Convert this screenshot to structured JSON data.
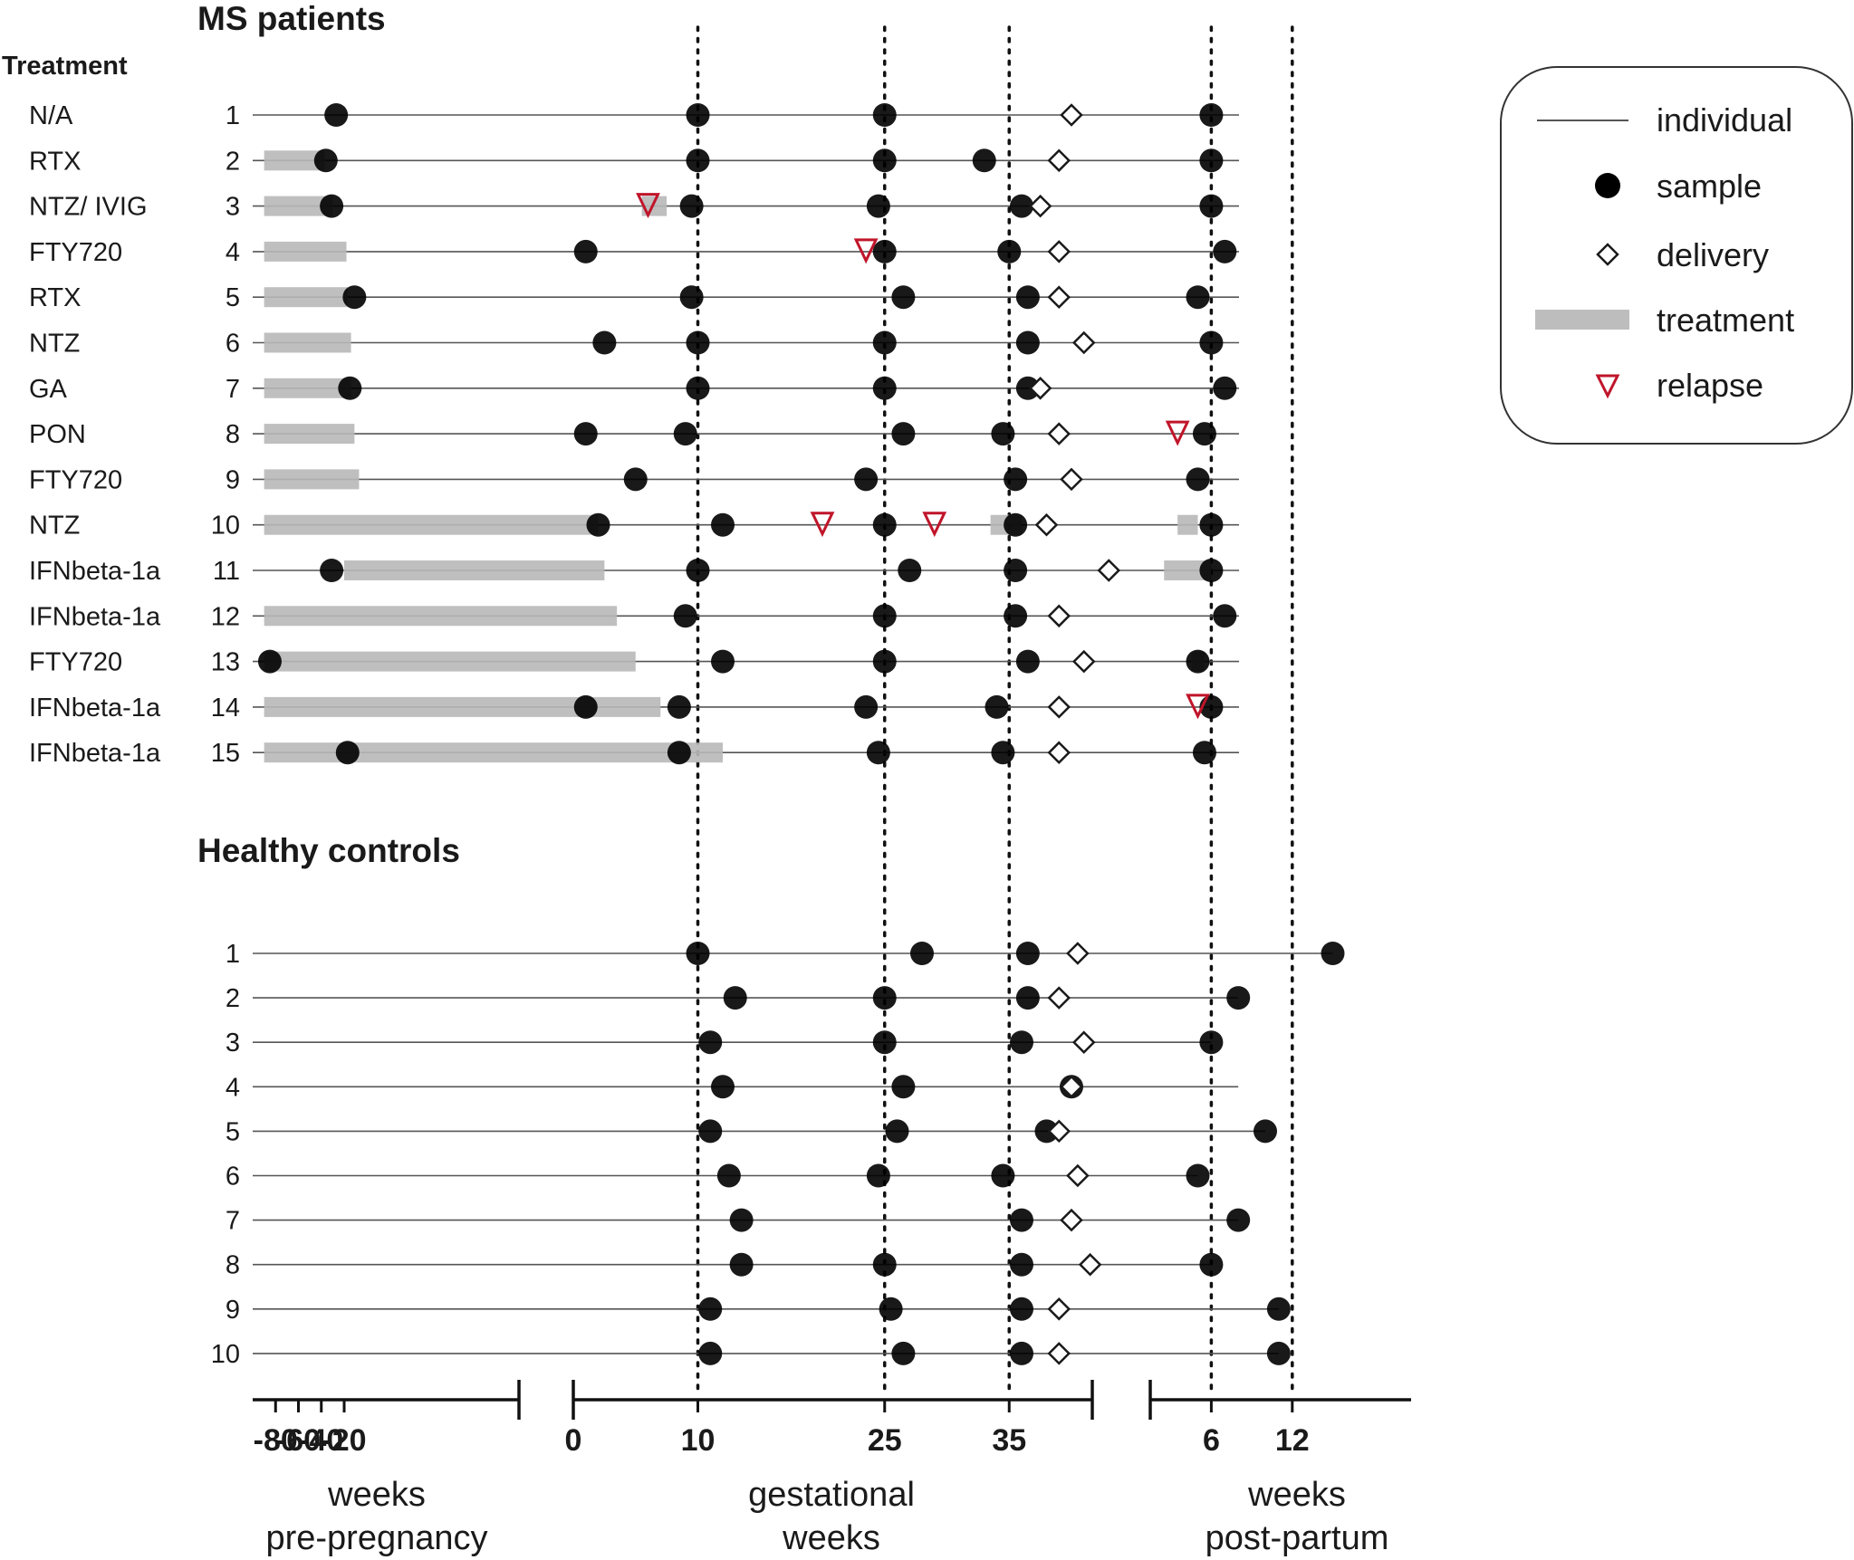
{
  "chart_data": {
    "type": "timeline",
    "title_ms": "MS patients",
    "title_hc": "Healthy controls",
    "treatment_header": "Treatment",
    "axes": {
      "pre_pregnancy": {
        "ticks": [
          "-80",
          "-60",
          "-40",
          "-20"
        ],
        "label_line1": "weeks",
        "label_line2": "pre-pregnancy"
      },
      "gestational": {
        "ticks": [
          "0",
          "10",
          "25",
          "35"
        ],
        "label_line1": "gestational",
        "label_line2": "weeks"
      },
      "post_partum": {
        "ticks": [
          "6",
          "12"
        ],
        "label_line1": "weeks",
        "label_line2": "post-partum"
      }
    },
    "reference_lines": [
      "g10",
      "g25",
      "g35",
      "p6",
      "p12"
    ],
    "legend": {
      "individual": "individual",
      "sample": "sample",
      "delivery": "delivery",
      "treatment": "treatment",
      "relapse": "relapse"
    },
    "ms_patients": [
      {
        "id": "1",
        "treatment": "N/A",
        "samples": [
          "pre:-27",
          "g10",
          "g25",
          "p6"
        ],
        "delivery": "g40",
        "relapses": [],
        "treatment_spans": []
      },
      {
        "id": "2",
        "treatment": "RTX",
        "samples": [
          "pre:-36",
          "g10",
          "g25",
          "g33",
          "p6"
        ],
        "delivery": "g39",
        "relapses": [],
        "treatment_spans": [
          [
            "pre:-90",
            "pre:-37"
          ]
        ]
      },
      {
        "id": "3",
        "treatment": "NTZ/ IVIG",
        "samples": [
          "pre:-31",
          "g9.5",
          "g24.5",
          "g36",
          "p6"
        ],
        "delivery": "g37.5",
        "relapses": [
          "g6"
        ],
        "treatment_spans": [
          [
            "pre:-90",
            "pre:-30"
          ],
          [
            "g5.5",
            "g7.5"
          ]
        ]
      },
      {
        "id": "4",
        "treatment": "FTY720",
        "samples": [
          "g1",
          "g25",
          "g35",
          "p7"
        ],
        "delivery": "g39",
        "relapses": [
          "g23.5"
        ],
        "treatment_spans": [
          [
            "pre:-90",
            "pre:-18"
          ]
        ]
      },
      {
        "id": "5",
        "treatment": "RTX",
        "samples": [
          "pre:-11",
          "g9.5",
          "g26.5",
          "g36.5",
          "p5"
        ],
        "delivery": "g39",
        "relapses": [],
        "treatment_spans": [
          [
            "pre:-90",
            "pre:-17"
          ]
        ]
      },
      {
        "id": "6",
        "treatment": "NTZ",
        "samples": [
          "g2.5",
          "g10",
          "g25",
          "g36.5",
          "p6"
        ],
        "delivery": "g41",
        "relapses": [],
        "treatment_spans": [
          [
            "pre:-90",
            "pre:-14"
          ]
        ]
      },
      {
        "id": "7",
        "treatment": "GA",
        "samples": [
          "pre:-15",
          "g10",
          "g25",
          "g36.5",
          "p7"
        ],
        "delivery": "g37.5",
        "relapses": [],
        "treatment_spans": [
          [
            "pre:-90",
            "pre:-14"
          ]
        ]
      },
      {
        "id": "8",
        "treatment": "PON",
        "samples": [
          "g1",
          "g9",
          "g26.5",
          "g34.5",
          "p5.5"
        ],
        "delivery": "g39",
        "relapses": [
          "p3.5"
        ],
        "treatment_spans": [
          [
            "pre:-90",
            "pre:-11"
          ]
        ]
      },
      {
        "id": "9",
        "treatment": "FTY720",
        "samples": [
          "g5",
          "g23.5",
          "g35.5",
          "p5"
        ],
        "delivery": "g40",
        "relapses": [],
        "treatment_spans": [
          [
            "pre:-90",
            "pre:-7"
          ]
        ]
      },
      {
        "id": "10",
        "treatment": "NTZ",
        "samples": [
          "g2",
          "g12",
          "g25",
          "g35.5",
          "p6"
        ],
        "delivery": "g38",
        "relapses": [
          "g20",
          "g29"
        ],
        "treatment_spans": [
          [
            "pre:-90",
            "g2"
          ],
          [
            "g33.5",
            "g36"
          ],
          [
            "p3.5",
            "p5"
          ]
        ]
      },
      {
        "id": "11",
        "treatment": "IFNbeta-1a",
        "samples": [
          "pre:-31",
          "g10",
          "g27",
          "g35.5",
          "p6"
        ],
        "delivery": "g43",
        "relapses": [],
        "treatment_spans": [
          [
            "pre:-20",
            "g2.5"
          ],
          [
            "p2.5",
            "p6"
          ]
        ]
      },
      {
        "id": "12",
        "treatment": "IFNbeta-1a",
        "samples": [
          "g9",
          "g25",
          "g35.5",
          "p7"
        ],
        "delivery": "g39",
        "relapses": [],
        "treatment_spans": [
          [
            "pre:-90",
            "g3.5"
          ]
        ]
      },
      {
        "id": "13",
        "treatment": "FTY720",
        "samples": [
          "pre:-85",
          "g12",
          "g25",
          "g36.5",
          "p5"
        ],
        "delivery": "g41",
        "relapses": [],
        "treatment_spans": [
          [
            "pre:-90",
            "g5"
          ],
          [
            "p4.5",
            "p5.5"
          ]
        ]
      },
      {
        "id": "14",
        "treatment": "IFNbeta-1a",
        "samples": [
          "g1",
          "g8.5",
          "g23.5",
          "g34",
          "p6"
        ],
        "delivery": "g39",
        "relapses": [
          "p5"
        ],
        "treatment_spans": [
          [
            "pre:-90",
            "g7"
          ]
        ]
      },
      {
        "id": "15",
        "treatment": "IFNbeta-1a",
        "samples": [
          "pre:-17",
          "g8.5",
          "g24.5",
          "g34.5",
          "p5.5"
        ],
        "delivery": "g39",
        "relapses": [],
        "treatment_spans": [
          [
            "pre:-90",
            "g12"
          ]
        ]
      }
    ],
    "healthy_controls": [
      {
        "id": "1",
        "samples": [
          "g10",
          "g28",
          "g36.5",
          "p15"
        ],
        "delivery": "g40.5",
        "line_end": "p15"
      },
      {
        "id": "2",
        "samples": [
          "g13",
          "g25",
          "g36.5",
          "p8"
        ],
        "delivery": "g39",
        "line_end": "p8"
      },
      {
        "id": "3",
        "samples": [
          "g11",
          "g25",
          "g36",
          "p6"
        ],
        "delivery": "g41",
        "line_end": "p6"
      },
      {
        "id": "4",
        "samples": [
          "g12",
          "g26.5",
          "g40"
        ],
        "delivery": "g40",
        "line_end": "p8"
      },
      {
        "id": "5",
        "samples": [
          "g11",
          "g26",
          "g38",
          "p10"
        ],
        "delivery": "g39",
        "line_end": "p10"
      },
      {
        "id": "6",
        "samples": [
          "g12.5",
          "g24.5",
          "g34.5",
          "p5"
        ],
        "delivery": "g40.5",
        "line_end": "p5"
      },
      {
        "id": "7",
        "samples": [
          "g13.5",
          "g36",
          "p8"
        ],
        "delivery": "g40",
        "line_end": "p8"
      },
      {
        "id": "8",
        "samples": [
          "g13.5",
          "g25",
          "g36",
          "p6"
        ],
        "delivery": "g41.5",
        "line_end": "p6"
      },
      {
        "id": "9",
        "samples": [
          "g11",
          "g25.5",
          "g36",
          "p11"
        ],
        "delivery": "g39",
        "line_end": "p11"
      },
      {
        "id": "10",
        "samples": [
          "g11",
          "g26.5",
          "g36",
          "p11"
        ],
        "delivery": "g39",
        "line_end": "p11"
      }
    ]
  }
}
